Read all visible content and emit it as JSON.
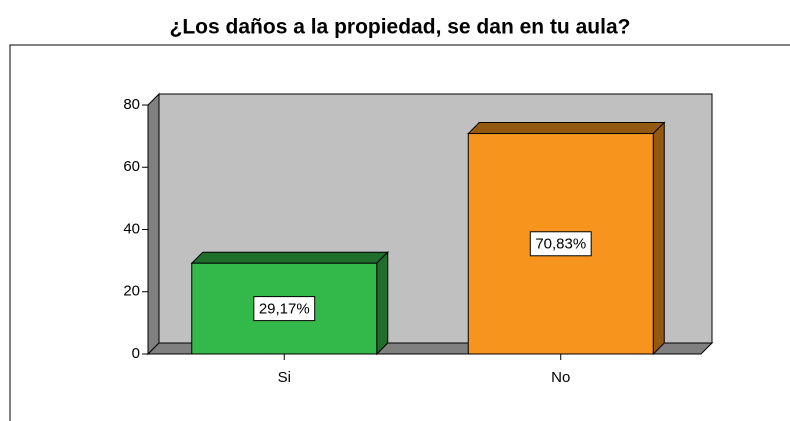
{
  "chart_data": {
    "type": "bar3d",
    "title": "¿Los daños a la propiedad, se dan en tu aula?",
    "categories": [
      "Si",
      "No"
    ],
    "values": [
      29.17,
      70.83
    ],
    "value_labels": [
      "29,17%",
      "70,83%"
    ],
    "colors": [
      "#33b84a",
      "#f7941d"
    ],
    "ylim": [
      0,
      80
    ],
    "yticks": [
      0,
      20,
      40,
      60,
      80
    ]
  }
}
